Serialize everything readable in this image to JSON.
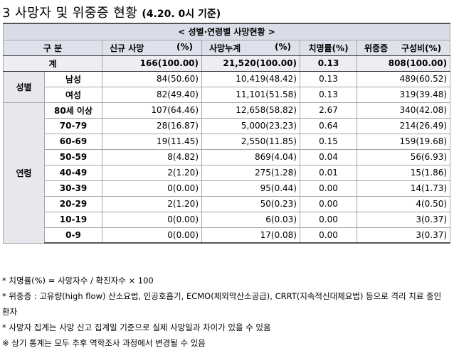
{
  "title": {
    "main": "3 사망자 및 위중증 현황",
    "sub": "(4.20. 0시 기준)"
  },
  "table": {
    "caption": "< 성별·연령별 사망현황 >",
    "headers": {
      "category": "구 분",
      "new_deaths": "신규 사망",
      "new_deaths_unit": "(%)",
      "cumulative": "사망누계",
      "cumulative_unit": "(%)",
      "cfr": "치명률(%)",
      "severe": "위중증",
      "severe_ratio": "구성비(%)"
    },
    "total": {
      "label": "계",
      "new": "166(100.00)",
      "cum": "21,520(100.00)",
      "cfr": "0.13",
      "severe": "808(100.00)"
    },
    "sex_group": "성별",
    "sex": [
      {
        "label": "남성",
        "new": "84(50.60)",
        "cum": "10,419(48.42)",
        "cfr": "0.13",
        "severe": "489(60.52)"
      },
      {
        "label": "여성",
        "new": "82(49.40)",
        "cum": "11,101(51.58)",
        "cfr": "0.13",
        "severe": "319(39.48)"
      }
    ],
    "age_group": "연령",
    "age": [
      {
        "label": "80세 이상",
        "new": "107(64.46)",
        "cum": "12,658(58.82)",
        "cfr": "2.67",
        "severe": "340(42.08)"
      },
      {
        "label": "70-79",
        "new": "28(16.87)",
        "cum": "5,000(23.23)",
        "cfr": "0.64",
        "severe": "214(26.49)"
      },
      {
        "label": "60-69",
        "new": "19(11.45)",
        "cum": "2,550(11.85)",
        "cfr": "0.15",
        "severe": "159(19.68)"
      },
      {
        "label": "50-59",
        "new": "8(4.82)",
        "cum": "869(4.04)",
        "cfr": "0.04",
        "severe": "56(6.93)"
      },
      {
        "label": "40-49",
        "new": "2(1.20)",
        "cum": "275(1.28)",
        "cfr": "0.01",
        "severe": "15(1.86)"
      },
      {
        "label": "30-39",
        "new": "0(0.00)",
        "cum": "95(0.44)",
        "cfr": "0.00",
        "severe": "14(1.73)"
      },
      {
        "label": "20-29",
        "new": "2(1.20)",
        "cum": "50(0.23)",
        "cfr": "0.00",
        "severe": "4(0.50)"
      },
      {
        "label": "10-19",
        "new": "0(0.00)",
        "cum": "6(0.03)",
        "cfr": "0.00",
        "severe": "3(0.37)"
      },
      {
        "label": "0-9",
        "new": "0(0.00)",
        "cum": "17(0.08)",
        "cfr": "0.00",
        "severe": "3(0.37)"
      }
    ]
  },
  "notes": [
    "* 치명률(%) = 사망자수 / 확진자수 × 100",
    "* 위중증 : 고유량(high flow) 산소요법, 인공호흡기, ECMO(체외막산소공급), CRRT(지속적신대체요법) 등으로 격리 치료 중인 환자",
    "* 사망자 집계는 사망 신고 집계일 기준으로 실제 사망일과 차이가 있을 수 있음",
    "※ 상기 통계는 모두 추후 역학조사 과정에서 변경될 수 있음"
  ]
}
